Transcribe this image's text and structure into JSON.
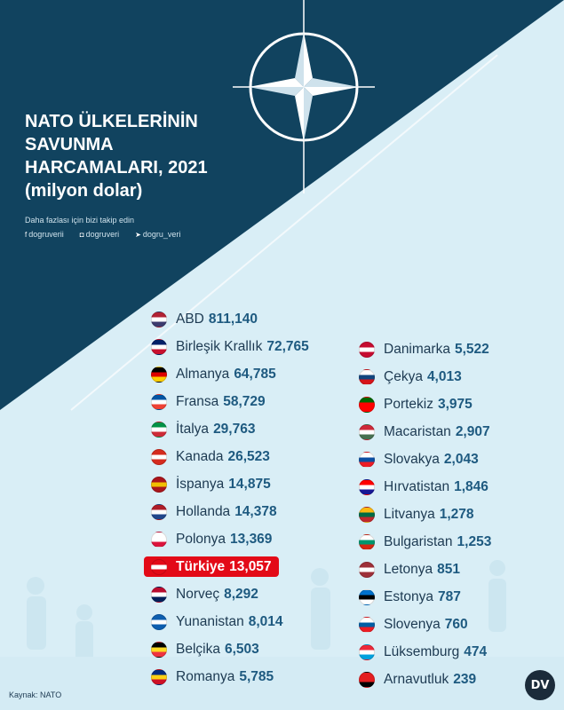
{
  "colors": {
    "dark_panel": "#11435f",
    "light_bg": "#d9eef6",
    "value_blue": "#1e5a80",
    "highlight_red": "#e30a17"
  },
  "title_lines": [
    "NATO ÜLKELERİNİN",
    "SAVUNMA",
    "HARCAMALARI, 2021",
    "(milyon dolar)"
  ],
  "follow_text": "Daha fazlası için bizi takip edin",
  "socials": [
    {
      "icon": "facebook-icon",
      "handle": "dogruverii"
    },
    {
      "icon": "instagram-icon",
      "handle": "dogruveri"
    },
    {
      "icon": "twitter-icon",
      "handle": "dogru_veri"
    }
  ],
  "source": "Kaynak: NATO",
  "logo_text": "DV",
  "chart_data": {
    "type": "table",
    "highlight": "Türkiye",
    "rows": [
      {
        "country": "ABD",
        "value": "811,140",
        "flag": [
          "#b22234",
          "#ffffff",
          "#3c3b6e"
        ]
      },
      {
        "country": "Birleşik Krallık",
        "value": "72,765",
        "flag": [
          "#012169",
          "#ffffff",
          "#c8102e"
        ]
      },
      {
        "country": "Almanya",
        "value": "64,785",
        "flag": [
          "#000000",
          "#dd0000",
          "#ffce00"
        ]
      },
      {
        "country": "Fransa",
        "value": "58,729",
        "flag": [
          "#0055a4",
          "#ffffff",
          "#ef4135"
        ]
      },
      {
        "country": "İtalya",
        "value": "29,763",
        "flag": [
          "#009246",
          "#ffffff",
          "#ce2b37"
        ]
      },
      {
        "country": "Kanada",
        "value": "26,523",
        "flag": [
          "#d52b1e",
          "#ffffff",
          "#d52b1e"
        ]
      },
      {
        "country": "İspanya",
        "value": "14,875",
        "flag": [
          "#aa151b",
          "#f1bf00",
          "#aa151b"
        ]
      },
      {
        "country": "Hollanda",
        "value": "14,378",
        "flag": [
          "#ae1c28",
          "#ffffff",
          "#21468b"
        ]
      },
      {
        "country": "Polonya",
        "value": "13,369",
        "flag": [
          "#ffffff",
          "#ffffff",
          "#dc143c"
        ]
      },
      {
        "country": "Türkiye",
        "value": "13,057",
        "flag": [
          "#e30a17",
          "#ffffff",
          "#e30a17"
        ]
      },
      {
        "country": "Norveç",
        "value": "8,292",
        "flag": [
          "#ba0c2f",
          "#ffffff",
          "#00205b"
        ]
      },
      {
        "country": "Yunanistan",
        "value": "8,014",
        "flag": [
          "#0d5eaf",
          "#ffffff",
          "#0d5eaf"
        ]
      },
      {
        "country": "Belçika",
        "value": "6,503",
        "flag": [
          "#000000",
          "#fdda24",
          "#ef3340"
        ]
      },
      {
        "country": "Romanya",
        "value": "5,785",
        "flag": [
          "#002b7f",
          "#fcd116",
          "#ce1126"
        ]
      },
      {
        "country": "Danimarka",
        "value": "5,522",
        "flag": [
          "#c60c30",
          "#ffffff",
          "#c60c30"
        ]
      },
      {
        "country": "Çekya",
        "value": "4,013",
        "flag": [
          "#ffffff",
          "#11457e",
          "#d7141a"
        ]
      },
      {
        "country": "Portekiz",
        "value": "3,975",
        "flag": [
          "#006600",
          "#ff0000",
          "#ff0000"
        ]
      },
      {
        "country": "Macaristan",
        "value": "2,907",
        "flag": [
          "#ce2939",
          "#ffffff",
          "#477050"
        ]
      },
      {
        "country": "Slovakya",
        "value": "2,043",
        "flag": [
          "#ffffff",
          "#0b4ea2",
          "#ee1c25"
        ]
      },
      {
        "country": "Hırvatistan",
        "value": "1,846",
        "flag": [
          "#ff0000",
          "#ffffff",
          "#171796"
        ]
      },
      {
        "country": "Litvanya",
        "value": "1,278",
        "flag": [
          "#fdb913",
          "#006a44",
          "#c1272d"
        ]
      },
      {
        "country": "Bulgaristan",
        "value": "1,253",
        "flag": [
          "#ffffff",
          "#00966e",
          "#d62612"
        ]
      },
      {
        "country": "Letonya",
        "value": "851",
        "flag": [
          "#9e3039",
          "#ffffff",
          "#9e3039"
        ]
      },
      {
        "country": "Estonya",
        "value": "787",
        "flag": [
          "#0072ce",
          "#000000",
          "#ffffff"
        ]
      },
      {
        "country": "Slovenya",
        "value": "760",
        "flag": [
          "#ffffff",
          "#005da4",
          "#ed1c24"
        ]
      },
      {
        "country": "Lüksemburg",
        "value": "474",
        "flag": [
          "#ed2939",
          "#ffffff",
          "#00a1de"
        ]
      },
      {
        "country": "Arnavutluk",
        "value": "239",
        "flag": [
          "#e41e20",
          "#e41e20",
          "#000000"
        ]
      }
    ]
  }
}
